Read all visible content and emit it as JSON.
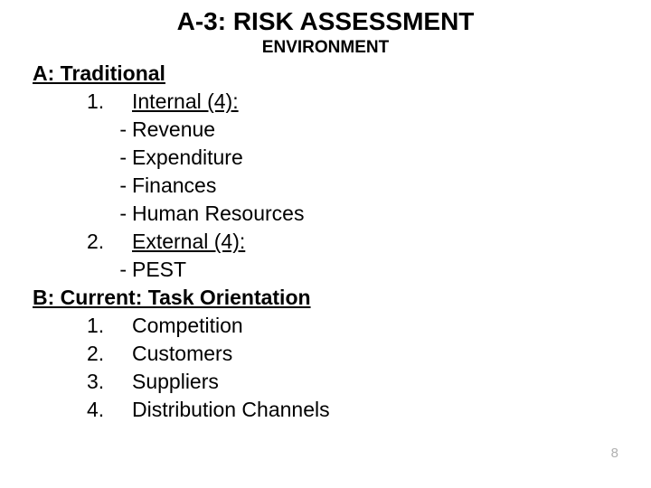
{
  "title": {
    "text": "A-3: RISK ASSESSMENT",
    "fontsize": 28,
    "color": "#000000"
  },
  "subtitle": {
    "text": "ENVIRONMENT",
    "fontsize": 19,
    "color": "#000000"
  },
  "body_fontsize": 23,
  "body_lineheight": 31,
  "colors": {
    "background": "#ffffff",
    "text": "#000000",
    "pagenum": "#b0b0b0"
  },
  "sectionA": {
    "heading": "A: Traditional",
    "items": [
      {
        "num": "1.",
        "label": "Internal (4):",
        "bullets": [
          "Revenue",
          "Expenditure",
          "Finances",
          "Human Resources"
        ]
      },
      {
        "num": "2.",
        "label": "External (4):",
        "bullets": [
          "PEST"
        ]
      }
    ]
  },
  "sectionB": {
    "heading": "B: Current: Task Orientation",
    "items": [
      {
        "num": "1.",
        "label": "Competition"
      },
      {
        "num": "2.",
        "label": "Customers"
      },
      {
        "num": "3.",
        "label": "Suppliers"
      },
      {
        "num": "4.",
        "label": "Distribution Channels"
      }
    ]
  },
  "page_number": "8",
  "page_number_fontsize": 15
}
